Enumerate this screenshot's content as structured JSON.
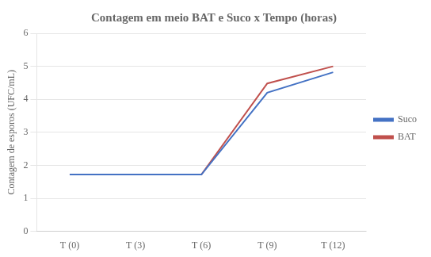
{
  "chart_data": {
    "type": "line",
    "title": "Contagem em meio BAT e Suco x Tempo (horas)",
    "ylabel": "Contagem de esporos (UFC/mL)",
    "categories": [
      "T (0)",
      "T (3)",
      "T (6)",
      "T (9)",
      "T (12)"
    ],
    "series": [
      {
        "name": "Suco",
        "color": "#4472C4",
        "values": [
          1.72,
          1.72,
          1.72,
          4.2,
          4.82
        ]
      },
      {
        "name": "BAT",
        "color": "#C0504D",
        "values": [
          1.72,
          1.72,
          1.72,
          4.48,
          5.0
        ]
      }
    ],
    "ylim": [
      0,
      6
    ],
    "yticks": [
      0,
      1,
      2,
      3,
      4,
      5,
      6
    ],
    "grid": true,
    "legend": "right"
  }
}
